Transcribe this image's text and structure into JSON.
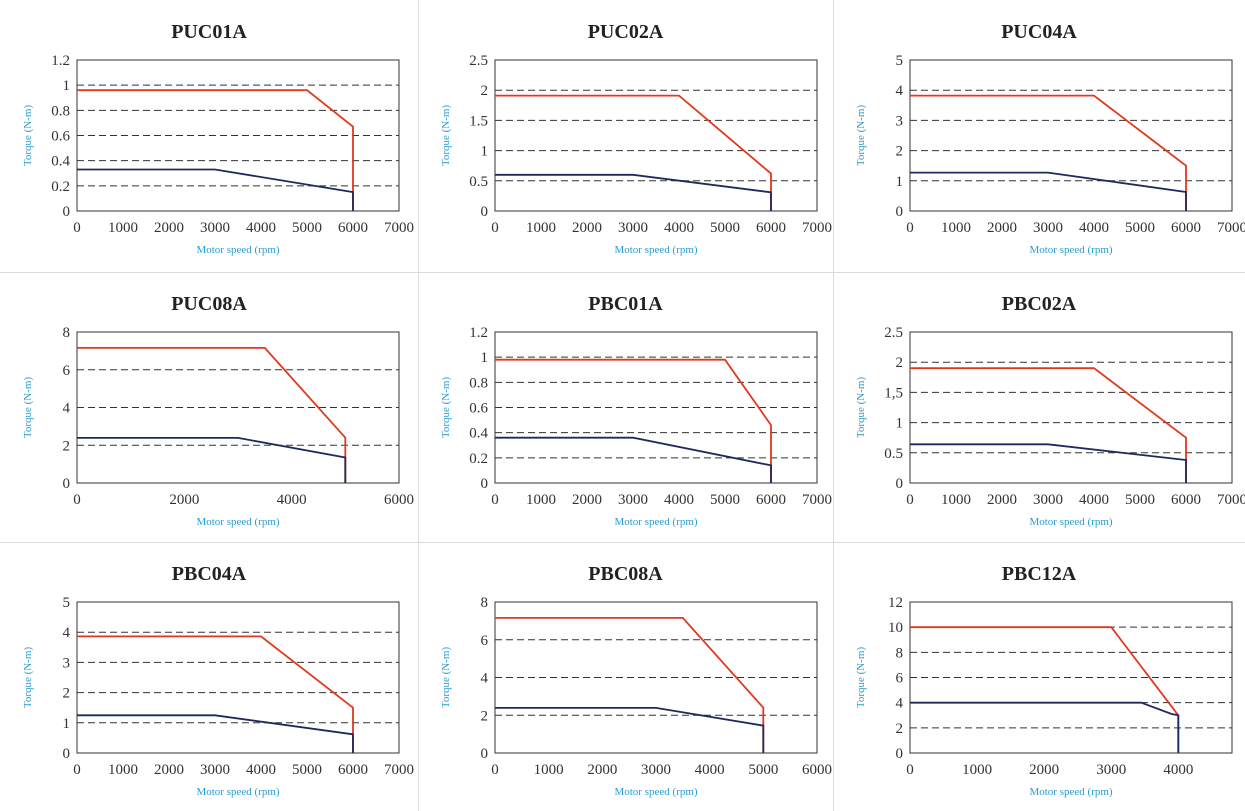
{
  "colors": {
    "peak": "#e0391f",
    "rated": "#1f2a5c",
    "axis_label": "#2a9ccf",
    "grid": "#333333",
    "panel_border": "#dcdcdc"
  },
  "chart_data": [
    {
      "type": "line",
      "title": "PUC01A",
      "xlabel": "Motor speed (rpm)",
      "ylabel": "Torque (N-m)",
      "xlim": [
        0,
        7000
      ],
      "ylim": [
        0,
        1.2
      ],
      "xticks": [
        0,
        1000,
        2000,
        3000,
        4000,
        5000,
        6000,
        7000
      ],
      "yticks": [
        0,
        0.2,
        0.4,
        0.6,
        0.8,
        1,
        1.2
      ],
      "ytick_labels": [
        "0",
        "0.2",
        "0.4",
        "0.6",
        "0.8",
        "1",
        "1.2"
      ],
      "grid": "y-dashed",
      "series": [
        {
          "role": "peak",
          "x": [
            0,
            5000,
            6000,
            6000
          ],
          "y": [
            0.96,
            0.96,
            0.67,
            0
          ]
        },
        {
          "role": "rated",
          "x": [
            0,
            3000,
            6000,
            6000
          ],
          "y": [
            0.33,
            0.33,
            0.15,
            0
          ]
        }
      ]
    },
    {
      "type": "line",
      "title": "PUC02A",
      "xlabel": "Motor speed (rpm)",
      "ylabel": "Torque (N-m)",
      "xlim": [
        0,
        7000
      ],
      "ylim": [
        0,
        2.5
      ],
      "xticks": [
        0,
        1000,
        2000,
        3000,
        4000,
        5000,
        6000,
        7000
      ],
      "yticks": [
        0,
        0.5,
        1,
        1.5,
        2,
        2.5
      ],
      "ytick_labels": [
        "0",
        "0.5",
        "1",
        "1.5",
        "2",
        "2.5"
      ],
      "grid": "y-dashed",
      "series": [
        {
          "role": "peak",
          "x": [
            0,
            4000,
            6000,
            6000
          ],
          "y": [
            1.91,
            1.91,
            0.62,
            0
          ]
        },
        {
          "role": "rated",
          "x": [
            0,
            3000,
            6000,
            6000
          ],
          "y": [
            0.6,
            0.6,
            0.31,
            0
          ]
        }
      ]
    },
    {
      "type": "line",
      "title": "PUC04A",
      "xlabel": "Motor speed (rpm)",
      "ylabel": "Torque (N-m)",
      "xlim": [
        0,
        7000
      ],
      "ylim": [
        0,
        5
      ],
      "xticks": [
        0,
        1000,
        2000,
        3000,
        4000,
        5000,
        6000,
        7000
      ],
      "yticks": [
        0,
        1,
        2,
        3,
        4,
        5
      ],
      "ytick_labels": [
        "0",
        "1",
        "2",
        "3",
        "4",
        "5"
      ],
      "grid": "y-dashed",
      "series": [
        {
          "role": "peak",
          "x": [
            0,
            4000,
            6000,
            6000
          ],
          "y": [
            3.82,
            3.82,
            1.5,
            0
          ]
        },
        {
          "role": "rated",
          "x": [
            0,
            3000,
            6000,
            6000
          ],
          "y": [
            1.27,
            1.27,
            0.63,
            0
          ]
        }
      ]
    },
    {
      "type": "line",
      "title": "PUC08A",
      "xlabel": "Motor speed (rpm)",
      "ylabel": "Torque (N-m)",
      "xlim": [
        0,
        6000
      ],
      "ylim": [
        0,
        8
      ],
      "xticks": [
        0,
        2000,
        4000,
        6000
      ],
      "yticks": [
        0,
        2,
        4,
        6,
        8
      ],
      "ytick_labels": [
        "0",
        "2",
        "4",
        "6",
        "8"
      ],
      "grid": "y-dashed",
      "series": [
        {
          "role": "peak",
          "x": [
            0,
            3500,
            5000,
            5000
          ],
          "y": [
            7.16,
            7.16,
            2.4,
            0
          ]
        },
        {
          "role": "rated",
          "x": [
            0,
            3000,
            5000,
            5000
          ],
          "y": [
            2.39,
            2.39,
            1.35,
            0
          ]
        }
      ]
    },
    {
      "type": "line",
      "title": "PBC01A",
      "xlabel": "Motor speed (rpm)",
      "ylabel": "Torque (N-m)",
      "xlim": [
        0,
        7000
      ],
      "ylim": [
        0,
        1.2
      ],
      "xticks": [
        0,
        1000,
        2000,
        3000,
        4000,
        5000,
        6000,
        7000
      ],
      "yticks": [
        0,
        0.2,
        0.4,
        0.6,
        0.8,
        1,
        1.2
      ],
      "ytick_labels": [
        "0",
        "0.2",
        "0.4",
        "0.6",
        "0.8",
        "1",
        "1.2"
      ],
      "grid": "y-dashed",
      "series": [
        {
          "role": "peak",
          "x": [
            0,
            5000,
            6000,
            6000
          ],
          "y": [
            0.98,
            0.98,
            0.46,
            0
          ]
        },
        {
          "role": "rated",
          "x": [
            0,
            3000,
            6000,
            6000
          ],
          "y": [
            0.36,
            0.36,
            0.14,
            0
          ]
        }
      ]
    },
    {
      "type": "line",
      "title": "PBC02A",
      "xlabel": "Motor speed (rpm)",
      "ylabel": "Torque (N-m)",
      "xlim": [
        0,
        7000
      ],
      "ylim": [
        0,
        2.5
      ],
      "xticks": [
        0,
        1000,
        2000,
        3000,
        4000,
        5000,
        6000,
        7000
      ],
      "yticks": [
        0,
        0.5,
        1,
        1.5,
        2,
        2.5
      ],
      "ytick_labels": [
        "0",
        "0.5",
        "1",
        "1,5",
        "2",
        "2.5"
      ],
      "grid": "y-dashed",
      "series": [
        {
          "role": "peak",
          "x": [
            0,
            4000,
            6000,
            6000
          ],
          "y": [
            1.9,
            1.9,
            0.75,
            0
          ]
        },
        {
          "role": "rated",
          "x": [
            0,
            3000,
            6000,
            6000
          ],
          "y": [
            0.64,
            0.64,
            0.38,
            0
          ]
        }
      ]
    },
    {
      "type": "line",
      "title": "PBC04A",
      "xlabel": "Motor speed (rpm)",
      "ylabel": "Torque (N-m)",
      "xlim": [
        0,
        7000
      ],
      "ylim": [
        0,
        5
      ],
      "xticks": [
        0,
        1000,
        2000,
        3000,
        4000,
        5000,
        6000,
        7000
      ],
      "yticks": [
        0,
        1,
        2,
        3,
        4,
        5
      ],
      "ytick_labels": [
        "0",
        "1",
        "2",
        "3",
        "4",
        "5"
      ],
      "grid": "y-dashed",
      "series": [
        {
          "role": "peak",
          "x": [
            0,
            4000,
            6000,
            6000
          ],
          "y": [
            3.86,
            3.86,
            1.5,
            0
          ]
        },
        {
          "role": "rated",
          "x": [
            0,
            3000,
            6000,
            6000
          ],
          "y": [
            1.25,
            1.25,
            0.62,
            0
          ]
        }
      ]
    },
    {
      "type": "line",
      "title": "PBC08A",
      "xlabel": "Motor speed (rpm)",
      "ylabel": "Torque (N-m)",
      "xlim": [
        0,
        6000
      ],
      "ylim": [
        0,
        8
      ],
      "xticks": [
        0,
        1000,
        2000,
        3000,
        4000,
        5000,
        6000
      ],
      "yticks": [
        0,
        2,
        4,
        6,
        8
      ],
      "ytick_labels": [
        "0",
        "2",
        "4",
        "6",
        "8"
      ],
      "grid": "y-dashed",
      "series": [
        {
          "role": "peak",
          "x": [
            0,
            3500,
            5000,
            5000
          ],
          "y": [
            7.16,
            7.16,
            2.4,
            0
          ]
        },
        {
          "role": "rated",
          "x": [
            0,
            3000,
            5000,
            5000
          ],
          "y": [
            2.39,
            2.39,
            1.45,
            0
          ]
        }
      ]
    },
    {
      "type": "line",
      "title": "PBC12A",
      "xlabel": "Motor speed (rpm)",
      "ylabel": "Torque (N-m)",
      "xlim": [
        0,
        4800
      ],
      "ylim": [
        0,
        12
      ],
      "xticks": [
        0,
        1000,
        2000,
        3000,
        4000
      ],
      "yticks": [
        0,
        2,
        4,
        6,
        8,
        10,
        12
      ],
      "ytick_labels": [
        "0",
        "2",
        "4",
        "6",
        "8",
        "10",
        "12"
      ],
      "grid": "y-dashed",
      "series": [
        {
          "role": "peak",
          "x": [
            0,
            3000,
            4000,
            4000
          ],
          "y": [
            10,
            10,
            3,
            0
          ]
        },
        {
          "role": "rated",
          "x": [
            0,
            3450,
            3900,
            4000,
            4000
          ],
          "y": [
            4,
            4,
            3.1,
            3,
            0
          ]
        }
      ]
    }
  ]
}
